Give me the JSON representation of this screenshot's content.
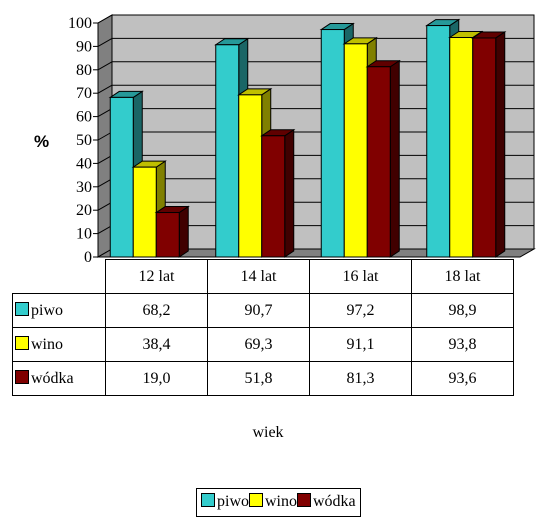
{
  "chart_data": {
    "type": "bar",
    "ylabel": "%",
    "xlabel": "wiek",
    "ylim": [
      0,
      100
    ],
    "yticks": [
      "0",
      "10",
      "20",
      "30",
      "40",
      "50",
      "60",
      "70",
      "80",
      "90",
      "100"
    ],
    "categories": [
      "12 lat",
      "14 lat",
      "16 lat",
      "18 lat"
    ],
    "series": [
      {
        "name": "piwo",
        "color": "#33cccc",
        "values": [
          68.2,
          90.7,
          97.2,
          98.9
        ],
        "labels": [
          "68,2",
          "90,7",
          "97,2",
          "98,9"
        ]
      },
      {
        "name": "wino",
        "color": "#ffff00",
        "values": [
          38.4,
          69.3,
          91.1,
          93.8
        ],
        "labels": [
          "38,4",
          "69,3",
          "91,1",
          "93,8"
        ]
      },
      {
        "name": "wódka",
        "color": "#800000",
        "values": [
          19.0,
          51.8,
          81.3,
          93.6
        ],
        "labels": [
          "19,0",
          "51,8",
          "81,3",
          "93,6"
        ]
      }
    ],
    "grid": true,
    "legend_position": "bottom",
    "style": "3d-column-with-data-table"
  }
}
